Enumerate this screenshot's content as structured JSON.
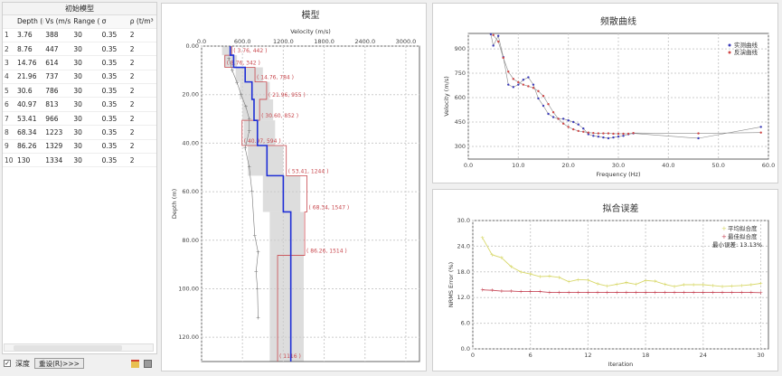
{
  "left_panel": {
    "title": "初始模型",
    "columns": [
      "Depth (m",
      "Vs (m/s)",
      "Range (%",
      "σ",
      "ρ (t/m³"
    ],
    "rows": [
      [
        "1",
        "3.76",
        "388",
        "30",
        "0.35",
        "2"
      ],
      [
        "2",
        "8.76",
        "447",
        "30",
        "0.35",
        "2"
      ],
      [
        "3",
        "14.76",
        "614",
        "30",
        "0.35",
        "2"
      ],
      [
        "4",
        "21.96",
        "737",
        "30",
        "0.35",
        "2"
      ],
      [
        "5",
        "30.6",
        "786",
        "30",
        "0.35",
        "2"
      ],
      [
        "6",
        "40.97",
        "813",
        "30",
        "0.35",
        "2"
      ],
      [
        "7",
        "53.41",
        "966",
        "30",
        "0.35",
        "2"
      ],
      [
        "8",
        "68.34",
        "1223",
        "30",
        "0.35",
        "2"
      ],
      [
        "9",
        "86.26",
        "1329",
        "30",
        "0.35",
        "2"
      ],
      [
        "10",
        "130",
        "1334",
        "30",
        "0.35",
        "2"
      ]
    ],
    "depth_checkbox": {
      "label": "深度",
      "checked": true
    },
    "reset_button": "重设(R)>>>",
    "icons": [
      "open-folder-icon",
      "save-icon"
    ]
  },
  "chart_data": [
    {
      "type": "line",
      "title": "模型",
      "xlabel": "Velocity (m/s)",
      "ylabel": "Depth (m)",
      "xlim": [
        0,
        3200
      ],
      "ylim": [
        130,
        0
      ],
      "xticks": [
        "0.0",
        "600.0",
        "1200.0",
        "1800.0",
        "2400.0",
        "3000.0"
      ],
      "yticks": [
        "0.00",
        "20.00",
        "40.00",
        "60.00",
        "80.00",
        "100.00",
        "120.00"
      ],
      "colors": {
        "best": "#1f2fd6",
        "bounds": "#c8474d",
        "range": "#dddddd",
        "trace": "#777777"
      },
      "best_model": [
        [
          0,
          420
        ],
        [
          3.76,
          470
        ],
        [
          8.76,
          640
        ],
        [
          14.76,
          740
        ],
        [
          21.96,
          770
        ],
        [
          30.6,
          820
        ],
        [
          40.97,
          960
        ],
        [
          53.41,
          1200
        ],
        [
          68.34,
          1310
        ],
        [
          130,
          1310
        ]
      ],
      "layer_ranges": [
        [
          0,
          3.76,
          300,
          450
        ],
        [
          3.76,
          8.76,
          330,
          520
        ],
        [
          8.76,
          14.76,
          500,
          900
        ],
        [
          14.76,
          21.96,
          560,
          1000
        ],
        [
          21.96,
          30.6,
          600,
          1050
        ],
        [
          30.6,
          40.97,
          620,
          1080
        ],
        [
          40.97,
          53.41,
          680,
          1200
        ],
        [
          53.41,
          68.34,
          900,
          1450
        ],
        [
          68.34,
          86.26,
          1000,
          1500
        ],
        [
          86.26,
          130,
          1000,
          1500
        ]
      ],
      "bound_labels": [
        {
          "depth": 3.76,
          "vs": 442,
          "text": "( 3.76, 442 )"
        },
        {
          "depth": 8.76,
          "vs": 342,
          "text": "( 8.76, 342 )"
        },
        {
          "depth": 14.76,
          "vs": 784,
          "text": "( 14.76, 784 )"
        },
        {
          "depth": 21.96,
          "vs": 955,
          "text": "( 21.96, 955 )"
        },
        {
          "depth": 30.6,
          "vs": 852,
          "text": "( 30.60, 852 )"
        },
        {
          "depth": 40.97,
          "vs": 594,
          "text": "( 40.97, 594 )"
        },
        {
          "depth": 53.41,
          "vs": 1244,
          "text": "( 53.41, 1244 )"
        },
        {
          "depth": 68.34,
          "vs": 1547,
          "text": "( 68.34, 1547 )"
        },
        {
          "depth": 86.26,
          "vs": 1514,
          "text": "( 86.26, 1514 )"
        },
        {
          "depth": 130,
          "vs": 1116,
          "text": "( 1116 )"
        }
      ],
      "trace": [
        [
          5,
          400
        ],
        [
          10,
          450
        ],
        [
          15,
          520
        ],
        [
          20,
          580
        ],
        [
          25,
          650
        ],
        [
          30,
          700
        ],
        [
          35,
          700
        ],
        [
          42,
          640
        ],
        [
          50,
          700
        ],
        [
          60,
          740
        ],
        [
          78,
          780
        ],
        [
          85,
          830
        ],
        [
          93,
          800
        ],
        [
          100,
          820
        ],
        [
          112,
          830
        ]
      ]
    },
    {
      "type": "line",
      "title": "频散曲线",
      "xlabel": "Frequency (Hz)",
      "ylabel": "Velocity (m/s)",
      "xlim": [
        0,
        60
      ],
      "ylim": [
        222,
        995
      ],
      "xticks": [
        "0.0",
        "10.0",
        "20.0",
        "30.0",
        "40.0",
        "50.0",
        "60.0"
      ],
      "yticks": [
        "300",
        "450",
        "600",
        "750",
        "900"
      ],
      "legend_placement": "top-right",
      "series": [
        {
          "name": "实测曲线",
          "color": "#3a3ab8",
          "points": [
            [
              4.5,
              990
            ],
            [
              5,
              920
            ],
            [
              6,
              980
            ],
            [
              7,
              850
            ],
            [
              8,
              680
            ],
            [
              9,
              665
            ],
            [
              10,
              680
            ],
            [
              11,
              710
            ],
            [
              12,
              725
            ],
            [
              13,
              680
            ],
            [
              14,
              595
            ],
            [
              15,
              550
            ],
            [
              16,
              500
            ],
            [
              17,
              480
            ],
            [
              18,
              470
            ],
            [
              19,
              470
            ],
            [
              20,
              460
            ],
            [
              21,
              450
            ],
            [
              22,
              435
            ],
            [
              23,
              410
            ],
            [
              24,
              375
            ],
            [
              25,
              365
            ],
            [
              26,
              360
            ],
            [
              27,
              355
            ],
            [
              28,
              350
            ],
            [
              29,
              355
            ],
            [
              30,
              360
            ],
            [
              31,
              365
            ],
            [
              32,
              375
            ],
            [
              33,
              380
            ],
            [
              46,
              350
            ],
            [
              58.5,
              420
            ]
          ]
        },
        {
          "name": "反演曲线",
          "color": "#d04848",
          "points": [
            [
              5,
              985
            ],
            [
              6,
              945
            ],
            [
              7,
              845
            ],
            [
              8,
              760
            ],
            [
              9,
              715
            ],
            [
              10,
              695
            ],
            [
              11,
              680
            ],
            [
              12,
              670
            ],
            [
              13,
              660
            ],
            [
              14,
              640
            ],
            [
              15,
              610
            ],
            [
              16,
              560
            ],
            [
              17,
              510
            ],
            [
              18,
              470
            ],
            [
              19,
              440
            ],
            [
              20,
              420
            ],
            [
              21,
              405
            ],
            [
              22,
              395
            ],
            [
              23,
              390
            ],
            [
              24,
              385
            ],
            [
              25,
              382
            ],
            [
              26,
              380
            ],
            [
              27,
              380
            ],
            [
              28,
              380
            ],
            [
              29,
              378
            ],
            [
              30,
              378
            ],
            [
              31,
              378
            ],
            [
              32,
              378
            ],
            [
              33,
              382
            ],
            [
              46,
              380
            ],
            [
              58.5,
              385
            ]
          ]
        }
      ]
    },
    {
      "type": "line",
      "title": "拟合误差",
      "xlabel": "Iteration",
      "ylabel": "NRMS Error (%)",
      "xlim": [
        0,
        30.8
      ],
      "ylim": [
        0,
        30
      ],
      "xticks": [
        "0",
        "6",
        "12",
        "18",
        "24",
        "30"
      ],
      "yticks": [
        "0.0",
        "6.0",
        "12.0",
        "18.0",
        "24.0",
        "30.0"
      ],
      "legend_placement": "top-right",
      "annotation": "最小误差: 13.13%",
      "series": [
        {
          "name": "平均拟合度",
          "color": "#d8d86a",
          "values": [
            26,
            22,
            21.3,
            19.2,
            18,
            17.5,
            16.9,
            17,
            16.7,
            15.7,
            16.2,
            16.1,
            15.2,
            14.7,
            15.1,
            15.5,
            15.1,
            16,
            15.8,
            15.1,
            14.6,
            15,
            15,
            15,
            14.8,
            14.6,
            14.7,
            14.8,
            15,
            15.3
          ]
        },
        {
          "name": "最佳拟合度",
          "color": "#c84a5a",
          "values": [
            13.8,
            13.7,
            13.5,
            13.5,
            13.4,
            13.4,
            13.4,
            13.2,
            13.2,
            13.2,
            13.2,
            13.2,
            13.2,
            13.2,
            13.2,
            13.2,
            13.2,
            13.2,
            13.2,
            13.2,
            13.2,
            13.2,
            13.2,
            13.2,
            13.2,
            13.2,
            13.2,
            13.2,
            13.2,
            13.13
          ]
        }
      ]
    }
  ]
}
